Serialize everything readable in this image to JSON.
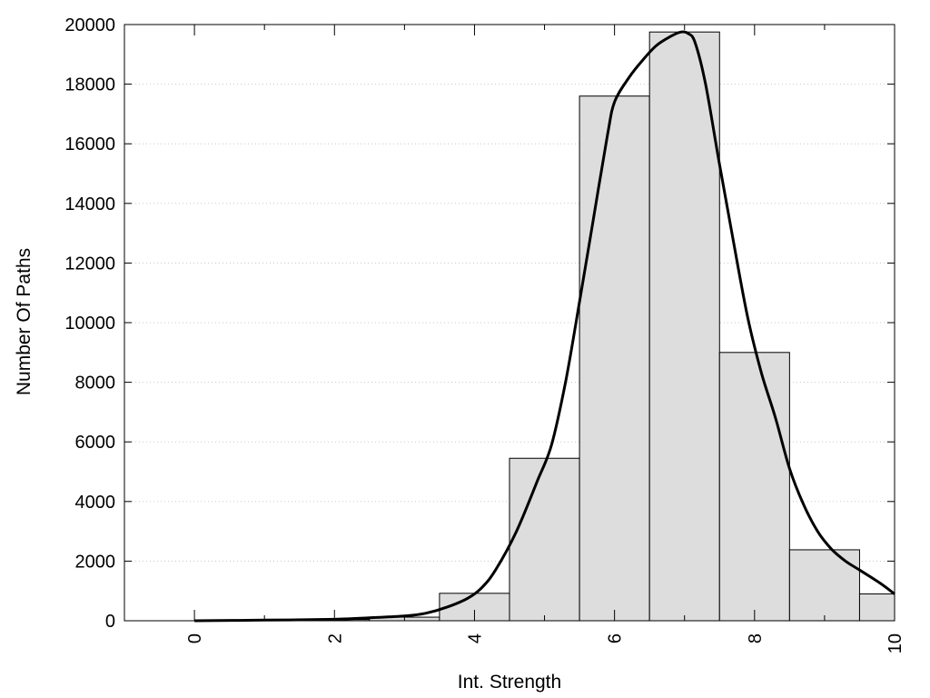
{
  "chart_data": {
    "type": "bar",
    "xlabel": "Int. Strength",
    "ylabel": "Number Of Paths",
    "xlim": [
      -1,
      10
    ],
    "ylim": [
      0,
      20000
    ],
    "xticks": [
      "0",
      "2",
      "4",
      "6",
      "8",
      "10"
    ],
    "yticks": [
      "0",
      "2000",
      "4000",
      "6000",
      "8000",
      "10000",
      "12000",
      "14000",
      "16000",
      "18000",
      "20000"
    ],
    "grid": "horizontal dotted",
    "bins": [
      {
        "center": 0,
        "value": 0
      },
      {
        "center": 1,
        "value": 0
      },
      {
        "center": 2,
        "value": 40
      },
      {
        "center": 3,
        "value": 120
      },
      {
        "center": 4,
        "value": 920
      },
      {
        "center": 5,
        "value": 5450
      },
      {
        "center": 6,
        "value": 17600
      },
      {
        "center": 7,
        "value": 19750
      },
      {
        "center": 8,
        "value": 9000
      },
      {
        "center": 9,
        "value": 2380
      },
      {
        "center": 10,
        "value": 900
      }
    ],
    "curve": {
      "x": [
        0,
        1,
        2,
        2.5,
        3,
        3.3,
        3.6,
        3.9,
        4.1,
        4.3,
        4.6,
        4.9,
        5.1,
        5.3,
        5.5,
        5.7,
        5.9,
        6.0,
        6.2,
        6.4,
        6.6,
        6.8,
        6.95,
        7.05,
        7.15,
        7.3,
        7.5,
        7.7,
        7.9,
        8.1,
        8.3,
        8.5,
        8.7,
        8.9,
        9.1,
        9.3,
        9.5,
        9.8,
        10.0
      ],
      "y": [
        0,
        20,
        50,
        100,
        160,
        250,
        450,
        750,
        1100,
        1700,
        3000,
        4700,
        5900,
        8000,
        10700,
        13500,
        16300,
        17400,
        18200,
        18800,
        19300,
        19600,
        19750,
        19700,
        19400,
        18000,
        15300,
        12700,
        10200,
        8300,
        6800,
        5100,
        3900,
        3000,
        2400,
        2000,
        1700,
        1250,
        900
      ]
    },
    "colors": {
      "bar_fill": "#dddddd",
      "bar_stroke": "#000000",
      "curve": "#000000",
      "grid": "#c8c8c8"
    }
  }
}
